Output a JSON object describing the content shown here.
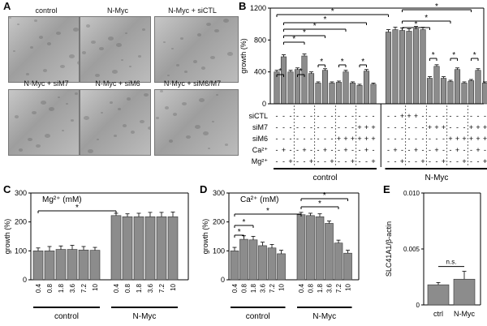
{
  "panel_letters": {
    "A": "A",
    "B": "B",
    "C": "C",
    "D": "D",
    "E": "E"
  },
  "micrographs": [
    "control",
    "N-Myc",
    "N-Myc + siCTL",
    "N-Myc + siM7",
    "N-Myc + siM6",
    "N-Myc + siM6/M7"
  ],
  "chart_data": [
    {
      "panel": "B",
      "type": "bar",
      "ylabel": "growth (%)",
      "ylim": [
        0,
        1200
      ],
      "yticks": [
        "0",
        "400",
        "800",
        "1200"
      ],
      "treatment_rows": [
        "siCTL",
        "siM7",
        "siM6",
        "Ca²⁺",
        "Mg²⁺"
      ],
      "groups": [
        "control",
        "N-Myc"
      ],
      "values": [
        400,
        590,
        400,
        430,
        600,
        380,
        260,
        420,
        260,
        270,
        400,
        260,
        230,
        410,
        245,
        900,
        930,
        920,
        910,
        940,
        930,
        320,
        470,
        320,
        280,
        430,
        260,
        290,
        420,
        260
      ],
      "errors": [
        20,
        25,
        20,
        20,
        25,
        20,
        15,
        20,
        15,
        15,
        20,
        15,
        15,
        20,
        15,
        30,
        30,
        30,
        30,
        30,
        30,
        20,
        20,
        20,
        15,
        20,
        15,
        15,
        20,
        15
      ],
      "significance": "*"
    },
    {
      "panel": "C",
      "type": "bar",
      "title": "Mg²⁺ (mM)",
      "ylabel": "growth (%)",
      "ylim": [
        0,
        300
      ],
      "yticks": [
        "0",
        "100",
        "200",
        "300"
      ],
      "categories": [
        "0.4",
        "0.8",
        "1.8",
        "3.6",
        "7.2",
        "10",
        "0.4",
        "0.8",
        "1.8",
        "3.6",
        "7.2",
        "10"
      ],
      "groups": [
        "control",
        "N-Myc"
      ],
      "values": [
        100,
        100,
        105,
        105,
        103,
        102,
        222,
        218,
        218,
        218,
        218,
        218
      ],
      "errors": [
        10,
        15,
        12,
        14,
        12,
        10,
        8,
        10,
        12,
        15,
        15,
        16
      ],
      "significance": "*"
    },
    {
      "panel": "D",
      "type": "bar",
      "title": "Ca²⁺ (mM)",
      "ylabel": "growth (%)",
      "ylim": [
        0,
        300
      ],
      "yticks": [
        "0",
        "100",
        "200",
        "300"
      ],
      "categories": [
        "0.4",
        "0.8",
        "1.8",
        "3.6",
        "7.2",
        "10",
        "0.4",
        "0.8",
        "1.8",
        "3.6",
        "7.2",
        "10"
      ],
      "groups": [
        "control",
        "N-Myc"
      ],
      "values": [
        100,
        140,
        138,
        118,
        110,
        90,
        225,
        222,
        218,
        195,
        127,
        92
      ],
      "errors": [
        12,
        12,
        12,
        12,
        12,
        12,
        8,
        8,
        10,
        8,
        10,
        10
      ],
      "significance": "*"
    },
    {
      "panel": "E",
      "type": "bar",
      "ylabel": "SLC41A1/β-actin",
      "ylim": [
        0,
        0.01
      ],
      "yticks": [
        "0",
        "0.005",
        "0.010"
      ],
      "categories": [
        "ctrl",
        "N-Myc"
      ],
      "values": [
        0.0018,
        0.0023
      ],
      "errors": [
        0.0002,
        0.0007
      ],
      "annotation": "n.s."
    }
  ]
}
